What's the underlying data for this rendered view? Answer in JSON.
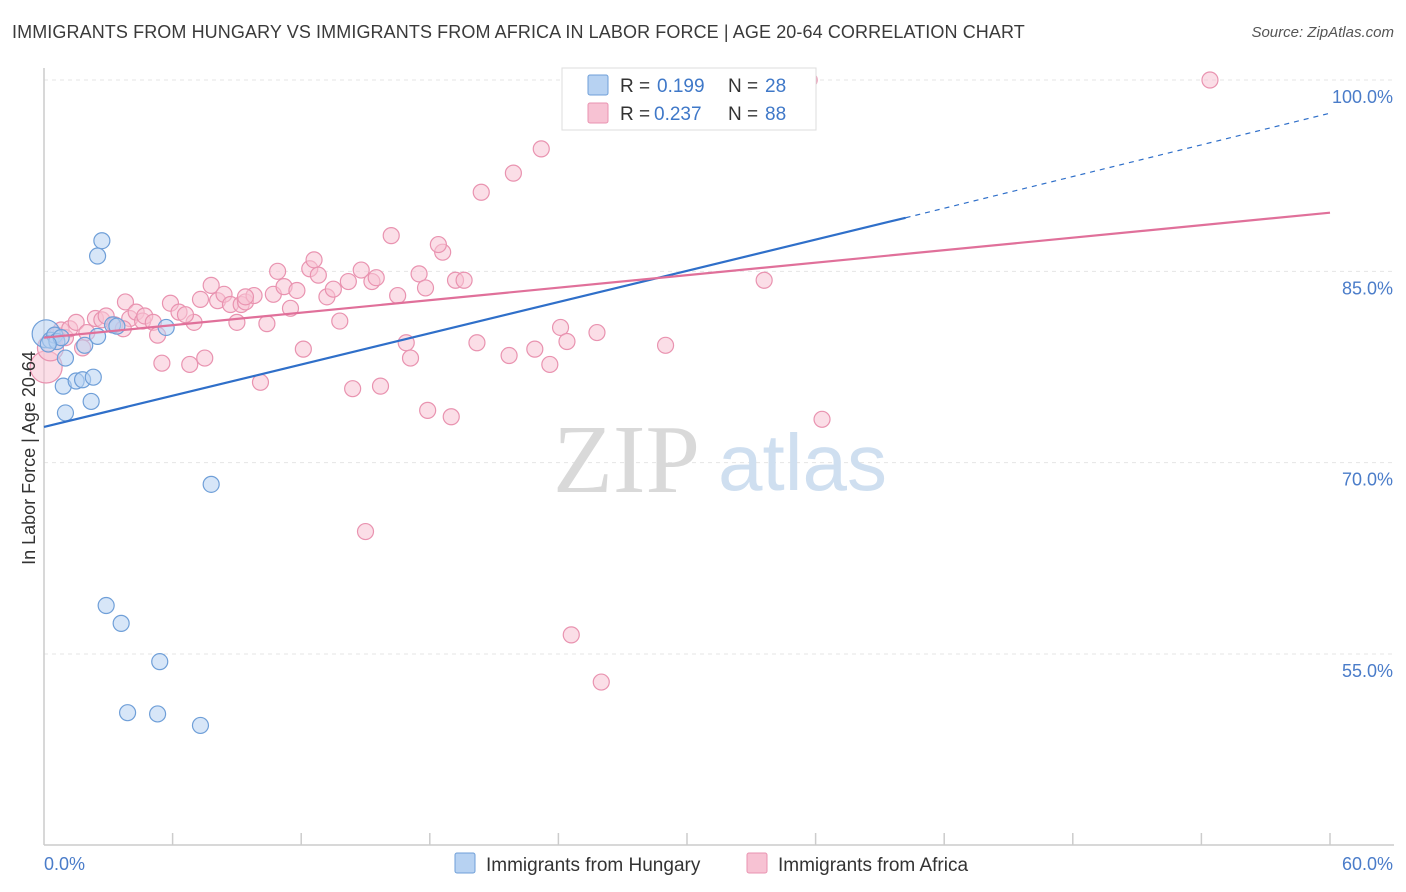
{
  "title": "IMMIGRANTS FROM HUNGARY VS IMMIGRANTS FROM AFRICA IN LABOR FORCE | AGE 20-64 CORRELATION CHART",
  "source": "Source: ZipAtlas.com",
  "watermark": {
    "zip": "ZIP",
    "atlas": "atlas"
  },
  "colors": {
    "hungary_fill": "#b7d2f2",
    "hungary_stroke": "#6f9fd8",
    "hungary_line": "#2f6fc9",
    "africa_fill": "#f7c2d3",
    "africa_stroke": "#e993b0",
    "africa_line": "#e0709a",
    "tick_text": "#4a7cc9",
    "grid": "#e5e5e5"
  },
  "legend": {
    "rows": [
      {
        "r_label": "R =",
        "r_value": "0.199",
        "n_label": "N =",
        "n_value": "28"
      },
      {
        "r_label": "R =",
        "r_value": "0.237",
        "n_label": "N =",
        "n_value": "88"
      }
    ]
  },
  "chart_data": {
    "type": "scatter",
    "title": "IMMIGRANTS FROM HUNGARY VS IMMIGRANTS FROM AFRICA IN LABOR FORCE | AGE 20-64 CORRELATION CHART",
    "xlabel": "",
    "ylabel": "In Labor Force | Age 20-64",
    "xlim": [
      0,
      60
    ],
    "ylim": [
      40,
      101.5
    ],
    "x_tick_labels": [
      "0.0%",
      "60.0%"
    ],
    "y_ticks": [
      55,
      70,
      85,
      100
    ],
    "y_tick_labels": [
      "55.0%",
      "70.0%",
      "85.0%",
      "100.0%"
    ],
    "grid": "horizontal dashed",
    "legend_position": "top-center",
    "series": [
      {
        "name": "Immigrants from Hungary",
        "r": 0.199,
        "n": 28,
        "trend": {
          "x0": 0,
          "y0": 72.8,
          "x1": 40.2,
          "y1": 89.2,
          "dashed_to_x": 60,
          "dashed_to_y": 97.4
        },
        "points": [
          {
            "x": 0.1,
            "y": 80.1,
            "r": 14
          },
          {
            "x": 0.3,
            "y": 79.6
          },
          {
            "x": 0.5,
            "y": 80.0
          },
          {
            "x": 0.6,
            "y": 79.5
          },
          {
            "x": 0.8,
            "y": 79.8
          },
          {
            "x": 1.0,
            "y": 78.2
          },
          {
            "x": 0.9,
            "y": 76.0
          },
          {
            "x": 1.0,
            "y": 73.9
          },
          {
            "x": 1.5,
            "y": 76.4
          },
          {
            "x": 1.8,
            "y": 76.5
          },
          {
            "x": 1.9,
            "y": 79.2
          },
          {
            "x": 2.2,
            "y": 74.8
          },
          {
            "x": 2.3,
            "y": 76.7
          },
          {
            "x": 2.5,
            "y": 86.2
          },
          {
            "x": 2.7,
            "y": 87.4
          },
          {
            "x": 2.5,
            "y": 79.9
          },
          {
            "x": 3.2,
            "y": 80.8
          },
          {
            "x": 3.4,
            "y": 80.7
          },
          {
            "x": 5.7,
            "y": 80.6
          },
          {
            "x": 7.8,
            "y": 68.3
          },
          {
            "x": 2.9,
            "y": 58.8
          },
          {
            "x": 3.6,
            "y": 57.4
          },
          {
            "x": 5.4,
            "y": 54.4
          },
          {
            "x": 3.9,
            "y": 50.4
          },
          {
            "x": 5.3,
            "y": 50.3
          },
          {
            "x": 7.3,
            "y": 49.4
          },
          {
            "x": 32.4,
            "y": 100.0
          },
          {
            "x": 0.2,
            "y": 79.3
          }
        ]
      },
      {
        "name": "Immigrants from Africa",
        "r": 0.237,
        "n": 88,
        "trend": {
          "x0": 0,
          "y0": 79.8,
          "x1": 60,
          "y1": 89.6
        },
        "points": [
          {
            "x": 0.1,
            "y": 77.5,
            "r": 16
          },
          {
            "x": 0.3,
            "y": 79.0,
            "r": 13
          },
          {
            "x": 0.6,
            "y": 80.0
          },
          {
            "x": 0.8,
            "y": 80.4
          },
          {
            "x": 1.0,
            "y": 79.8
          },
          {
            "x": 1.2,
            "y": 80.5
          },
          {
            "x": 1.5,
            "y": 81.0
          },
          {
            "x": 1.8,
            "y": 79.0
          },
          {
            "x": 2.0,
            "y": 80.2
          },
          {
            "x": 2.4,
            "y": 81.3
          },
          {
            "x": 2.7,
            "y": 81.2
          },
          {
            "x": 2.9,
            "y": 81.5
          },
          {
            "x": 3.3,
            "y": 80.8
          },
          {
            "x": 3.8,
            "y": 82.6
          },
          {
            "x": 4.0,
            "y": 81.3
          },
          {
            "x": 4.3,
            "y": 81.8
          },
          {
            "x": 4.6,
            "y": 81.1
          },
          {
            "x": 4.7,
            "y": 81.5
          },
          {
            "x": 5.1,
            "y": 81.0
          },
          {
            "x": 5.3,
            "y": 80.0
          },
          {
            "x": 5.5,
            "y": 77.8
          },
          {
            "x": 5.9,
            "y": 82.5
          },
          {
            "x": 6.3,
            "y": 81.8
          },
          {
            "x": 6.8,
            "y": 77.7
          },
          {
            "x": 7.0,
            "y": 81.0
          },
          {
            "x": 7.3,
            "y": 82.8
          },
          {
            "x": 7.5,
            "y": 78.2
          },
          {
            "x": 7.8,
            "y": 83.9
          },
          {
            "x": 8.1,
            "y": 82.7
          },
          {
            "x": 8.4,
            "y": 83.2
          },
          {
            "x": 8.7,
            "y": 82.4
          },
          {
            "x": 9.0,
            "y": 81.0
          },
          {
            "x": 9.2,
            "y": 82.4
          },
          {
            "x": 9.4,
            "y": 82.6
          },
          {
            "x": 9.8,
            "y": 83.1
          },
          {
            "x": 10.1,
            "y": 76.3
          },
          {
            "x": 10.4,
            "y": 80.9
          },
          {
            "x": 10.7,
            "y": 83.2
          },
          {
            "x": 10.9,
            "y": 85.0
          },
          {
            "x": 11.2,
            "y": 83.8
          },
          {
            "x": 11.5,
            "y": 82.1
          },
          {
            "x": 11.8,
            "y": 83.5
          },
          {
            "x": 12.1,
            "y": 78.9
          },
          {
            "x": 12.4,
            "y": 85.2
          },
          {
            "x": 12.6,
            "y": 85.9
          },
          {
            "x": 12.8,
            "y": 84.7
          },
          {
            "x": 13.2,
            "y": 83.0
          },
          {
            "x": 13.5,
            "y": 83.6
          },
          {
            "x": 13.8,
            "y": 81.1
          },
          {
            "x": 14.2,
            "y": 84.2
          },
          {
            "x": 14.4,
            "y": 75.8
          },
          {
            "x": 14.8,
            "y": 85.1
          },
          {
            "x": 15.0,
            "y": 64.6
          },
          {
            "x": 15.3,
            "y": 84.2
          },
          {
            "x": 15.5,
            "y": 84.5
          },
          {
            "x": 15.7,
            "y": 76.0
          },
          {
            "x": 16.2,
            "y": 87.8
          },
          {
            "x": 16.5,
            "y": 83.1
          },
          {
            "x": 16.9,
            "y": 79.4
          },
          {
            "x": 17.1,
            "y": 78.2
          },
          {
            "x": 17.5,
            "y": 84.8
          },
          {
            "x": 17.8,
            "y": 83.7
          },
          {
            "x": 17.9,
            "y": 74.1
          },
          {
            "x": 18.6,
            "y": 86.5
          },
          {
            "x": 19.0,
            "y": 73.6
          },
          {
            "x": 19.2,
            "y": 84.3
          },
          {
            "x": 19.6,
            "y": 84.3
          },
          {
            "x": 18.4,
            "y": 87.1
          },
          {
            "x": 20.2,
            "y": 79.4
          },
          {
            "x": 20.4,
            "y": 91.2
          },
          {
            "x": 21.7,
            "y": 78.4
          },
          {
            "x": 21.9,
            "y": 92.7
          },
          {
            "x": 22.9,
            "y": 78.9
          },
          {
            "x": 23.2,
            "y": 94.6
          },
          {
            "x": 23.6,
            "y": 77.7
          },
          {
            "x": 24.1,
            "y": 80.6
          },
          {
            "x": 24.4,
            "y": 79.5
          },
          {
            "x": 24.6,
            "y": 56.5
          },
          {
            "x": 25.8,
            "y": 80.2
          },
          {
            "x": 26.0,
            "y": 52.8
          },
          {
            "x": 29.0,
            "y": 79.2
          },
          {
            "x": 33.6,
            "y": 84.3
          },
          {
            "x": 35.7,
            "y": 100.0
          },
          {
            "x": 36.3,
            "y": 73.4
          },
          {
            "x": 54.4,
            "y": 100.0
          },
          {
            "x": 9.4,
            "y": 83.0
          },
          {
            "x": 3.7,
            "y": 80.5
          },
          {
            "x": 6.6,
            "y": 81.6
          }
        ]
      }
    ]
  }
}
